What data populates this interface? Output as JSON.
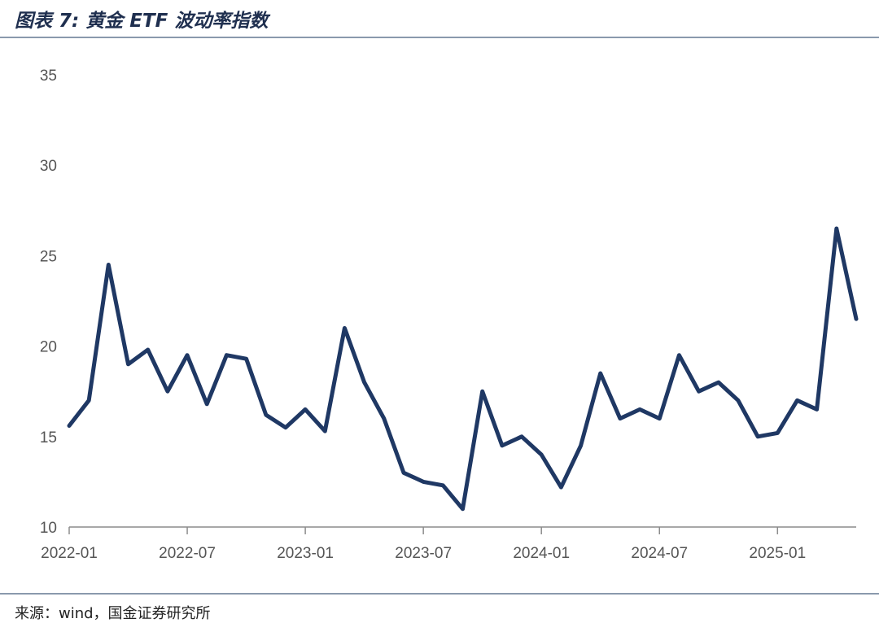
{
  "figure": {
    "title": "图表 7:  黄金 ETF 波动率指数",
    "source": "来源：wind，国金证券研究所"
  },
  "colors": {
    "line": "#1f3864",
    "axis": "#8c8c8c",
    "rule": "#8a99ad"
  },
  "chart_data": {
    "type": "line",
    "title": "",
    "xlabel": "",
    "ylabel": "",
    "ylim": [
      10,
      35
    ],
    "yticks": [
      "10",
      "15",
      "20",
      "25",
      "30",
      "35"
    ],
    "xticks": [
      "2022-01",
      "2022-07",
      "2023-01",
      "2023-07",
      "2024-01",
      "2024-07",
      "2025-01"
    ],
    "xlim": [
      "2022-01",
      "2025-05"
    ],
    "grid": false,
    "legend": "none",
    "series": [
      {
        "x": [
          "2022-01",
          "2022-02",
          "2022-03",
          "2022-04",
          "2022-05",
          "2022-06",
          "2022-07",
          "2022-08",
          "2022-09",
          "2022-10",
          "2022-11",
          "2022-12",
          "2023-01",
          "2023-02",
          "2023-03",
          "2023-04",
          "2023-05",
          "2023-06",
          "2023-07",
          "2023-08",
          "2023-09",
          "2023-10",
          "2023-11",
          "2023-12",
          "2024-01",
          "2024-02",
          "2024-03",
          "2024-04",
          "2024-05",
          "2024-06",
          "2024-07",
          "2024-08",
          "2024-09",
          "2024-10",
          "2024-11",
          "2024-12",
          "2025-01",
          "2025-02",
          "2025-03",
          "2025-04",
          "2025-05"
        ],
        "y": [
          15.6,
          17.0,
          24.5,
          19.0,
          19.8,
          17.5,
          19.5,
          16.8,
          19.5,
          19.3,
          16.2,
          15.5,
          16.5,
          15.3,
          21.0,
          18.0,
          16.0,
          13.0,
          12.5,
          12.3,
          11.0,
          17.5,
          14.5,
          15.0,
          14.0,
          12.2,
          14.5,
          18.5,
          16.0,
          16.5,
          16.0,
          19.5,
          17.5,
          18.0,
          17.0,
          15.0,
          15.2,
          17.0,
          16.5,
          26.5,
          21.5
        ]
      }
    ]
  }
}
